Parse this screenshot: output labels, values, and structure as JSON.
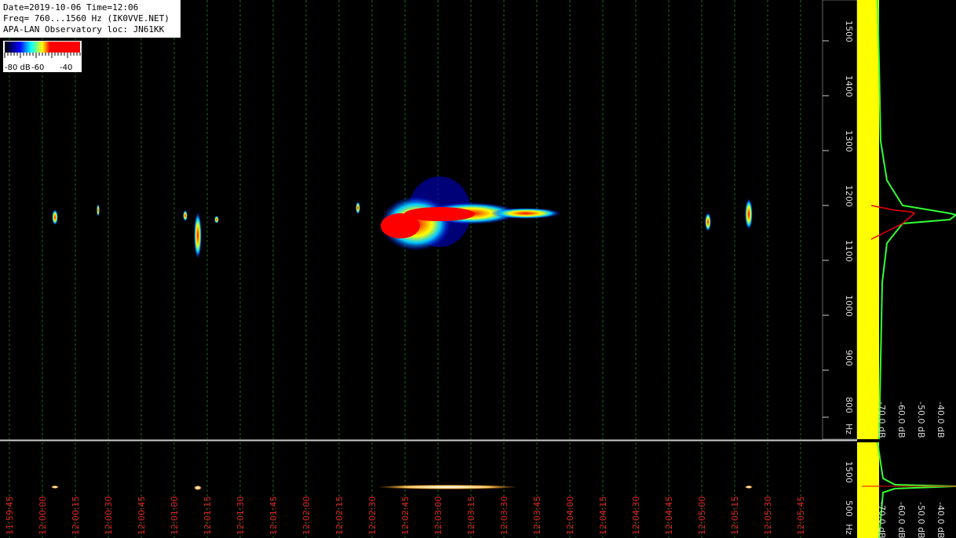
{
  "header": {
    "lines": [
      "Date=2019-10-06 Time=12:06",
      "Freq= 760...1560 Hz (IK0VVE.NET)",
      "APA-LAN Observatory loc: JN61KK"
    ]
  },
  "color_scale": {
    "labels": [
      "-80 dB",
      "-60",
      "-40"
    ]
  },
  "frequency_axis": {
    "labels": [
      "1500",
      "1400",
      "1300",
      "1200",
      "1100",
      "1000",
      "900",
      "800"
    ],
    "unit": "Hz"
  },
  "level_axis": {
    "labels": [
      "-70.0 dB",
      "-60.0 dB",
      "-50.0 dB",
      "-40.0 dB"
    ]
  },
  "lower_frequency_axis": {
    "labels": [
      "1500",
      "500"
    ],
    "unit": "Hz"
  },
  "lower_level_axis": {
    "labels": [
      "-70.0 dB",
      "-60.0 dB",
      "-50.0 dB",
      "-40.0 dB"
    ]
  },
  "time_axis": {
    "labels": [
      "11:59:45",
      "12:00:00",
      "12:00:15",
      "12:00:30",
      "12:00:45",
      "12:01:00",
      "12:01:15",
      "12:01:30",
      "12:01:45",
      "12:02:00",
      "12:02:15",
      "12:02:30",
      "12:02:45",
      "12:03:00",
      "12:03:15",
      "12:03:30",
      "12:03:45",
      "12:04:00",
      "12:04:15",
      "12:04:30",
      "12:04:45",
      "12:05:00",
      "12:05:15",
      "12:05:30",
      "12:05:45"
    ]
  }
}
